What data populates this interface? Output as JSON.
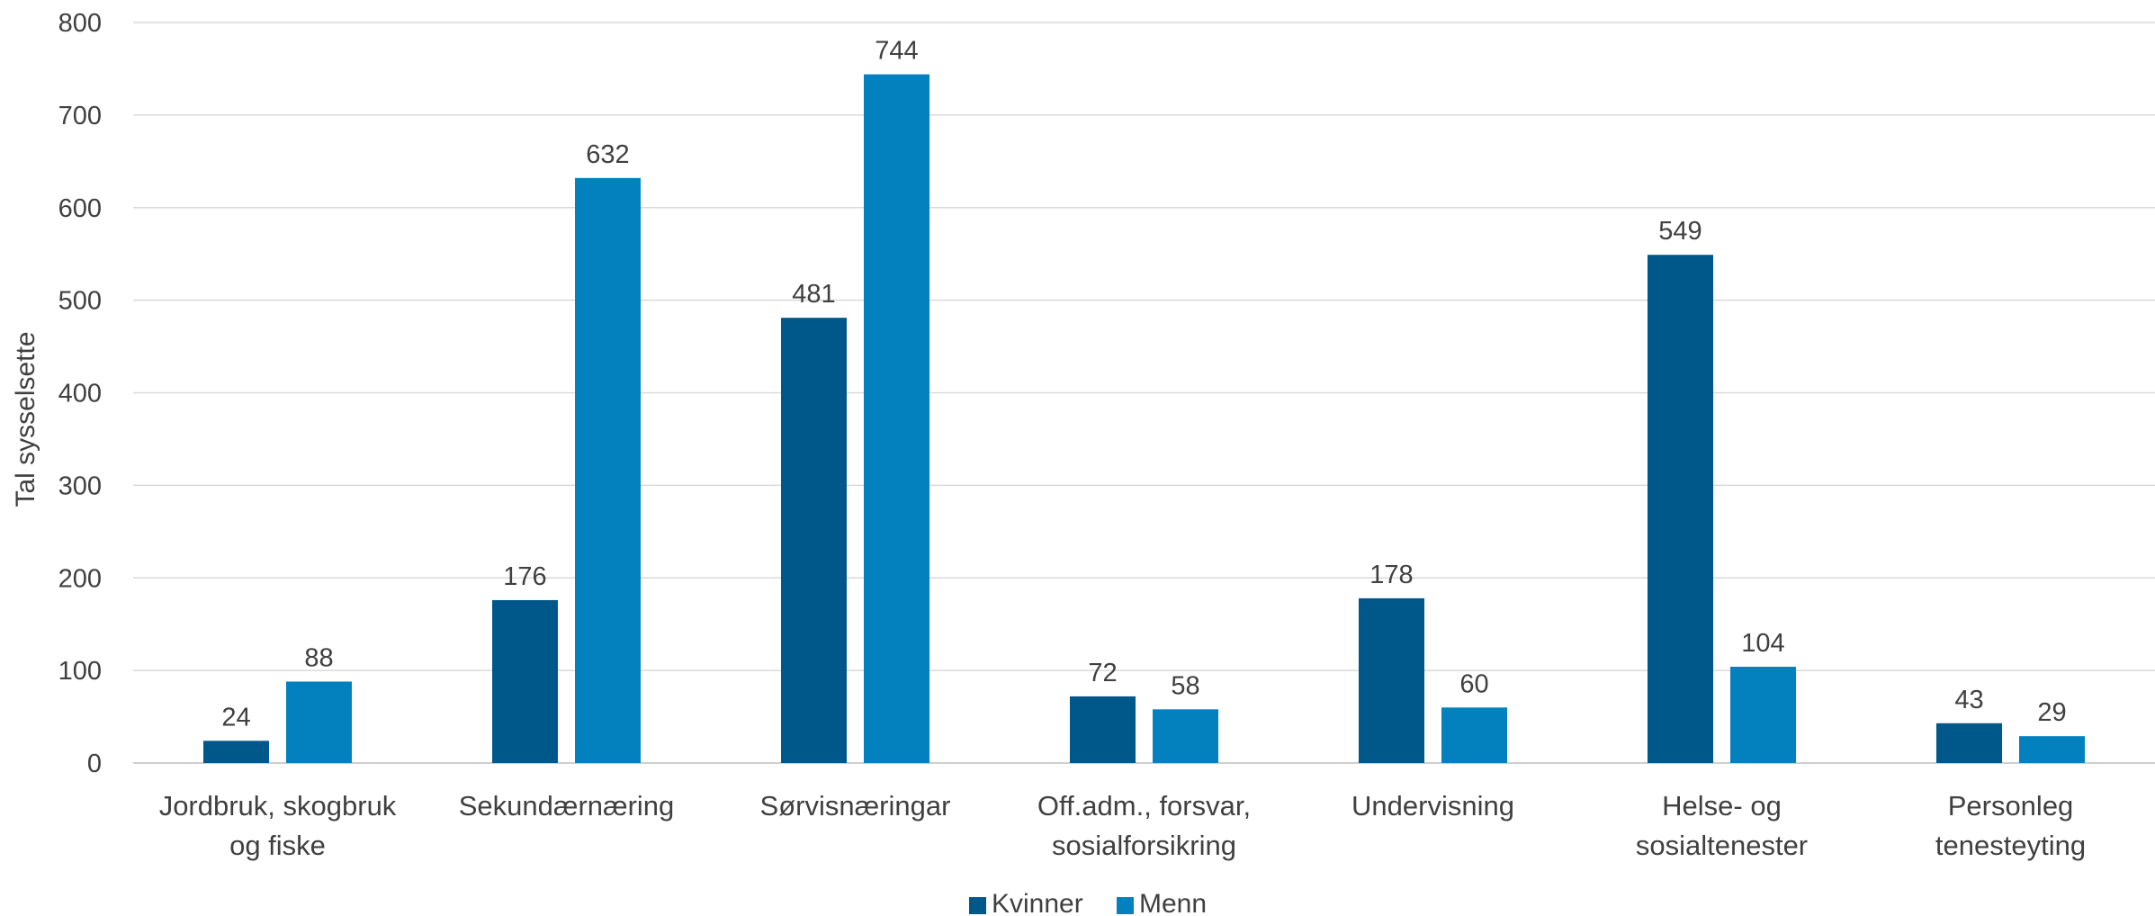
{
  "chart_data": {
    "type": "bar",
    "categories": [
      [
        "Jordbruk, skogbruk",
        "og fiske"
      ],
      [
        "Sekundærnæring"
      ],
      [
        "Sørvisnæringar"
      ],
      [
        "Off.adm., forsvar,",
        "sosialforsikring"
      ],
      [
        "Undervisning"
      ],
      [
        "Helse- og",
        "sosialtenester"
      ],
      [
        "Personleg",
        "tenesteyting"
      ]
    ],
    "series": [
      {
        "name": "Kvinner",
        "color": "#00578A",
        "values": [
          24,
          176,
          481,
          72,
          178,
          549,
          43
        ]
      },
      {
        "name": "Menn",
        "color": "#0381BE",
        "values": [
          88,
          632,
          744,
          58,
          60,
          104,
          29
        ]
      }
    ],
    "ylabel": "Tal sysselsette",
    "ylim": [
      0,
      800
    ],
    "yticks": [
      0,
      100,
      200,
      300,
      400,
      500,
      600,
      700,
      800
    ],
    "grid": true,
    "legend_position": "bottom"
  }
}
